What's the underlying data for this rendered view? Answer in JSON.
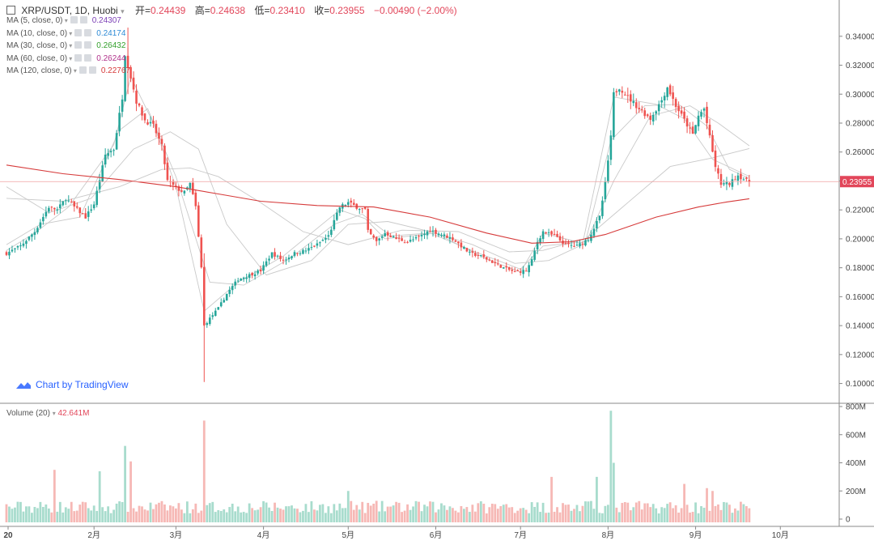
{
  "header": {
    "symbol": "XRP/USDT, 1D, Huobi",
    "open_label": "开=",
    "open": "0.24439",
    "high_label": "高=",
    "high": "0.24638",
    "low_label": "低=",
    "low": "0.23410",
    "close_label": "收=",
    "close": "0.23955",
    "change": "−0.00490 (−2.00%)"
  },
  "ma_legend": [
    {
      "label": "MA (5, close, 0)",
      "value": "0.24307",
      "color": "#7b3fb6"
    },
    {
      "label": "MA (10, close, 0)",
      "value": "0.24174",
      "color": "#2e8bd6"
    },
    {
      "label": "MA (30, close, 0)",
      "value": "0.26432",
      "color": "#33a02c"
    },
    {
      "label": "MA (60, close, 0)",
      "value": "0.26244",
      "color": "#b0308a"
    },
    {
      "label": "MA (120, close, 0)",
      "value": "0.22767",
      "color": "#d63a3a"
    }
  ],
  "volume_legend": {
    "label": "Volume (20)",
    "value": "42.641M",
    "color": "#e2465a"
  },
  "watermark": "Chart by TradingView",
  "last_price_label": "0.23955",
  "colors": {
    "up": "#26a69a",
    "down": "#ef5350",
    "up_vol": "#a8dccd",
    "down_vol": "#f6b8b5",
    "ma120": "#d63a3a",
    "ma_thin": "#c9c9c9",
    "grid": "#e6e6e6"
  },
  "chart_data": {
    "type": "candlestick",
    "price_axis": {
      "ticks": [
        "0.34000",
        "0.32000",
        "0.30000",
        "0.28000",
        "0.26000",
        "0.24000",
        "0.22000",
        "0.20000",
        "0.18000",
        "0.16000",
        "0.14000",
        "0.12000",
        "0.10000"
      ],
      "range": [
        0.088,
        0.355
      ]
    },
    "volume_axis": {
      "ticks": [
        "800M",
        "600M",
        "400M",
        "200M",
        "0"
      ],
      "range": [
        0,
        800
      ]
    },
    "time_axis": {
      "labels": [
        "20",
        "2月",
        "3月",
        "4月",
        "5月",
        "6月",
        "7月",
        "8月",
        "9月",
        "10月"
      ],
      "day_index": [
        0,
        31,
        60,
        91,
        121,
        152,
        182,
        213,
        244,
        274
      ]
    },
    "close_path": [
      [
        0,
        0.19
      ],
      [
        5,
        0.195
      ],
      [
        10,
        0.205
      ],
      [
        15,
        0.222
      ],
      [
        18,
        0.22
      ],
      [
        21,
        0.228
      ],
      [
        24,
        0.222
      ],
      [
        28,
        0.215
      ],
      [
        31,
        0.224
      ],
      [
        35,
        0.258
      ],
      [
        38,
        0.262
      ],
      [
        41,
        0.298
      ],
      [
        42,
        0.328
      ],
      [
        44,
        0.312
      ],
      [
        46,
        0.295
      ],
      [
        49,
        0.282
      ],
      [
        52,
        0.278
      ],
      [
        55,
        0.264
      ],
      [
        57,
        0.24
      ],
      [
        60,
        0.235
      ],
      [
        63,
        0.232
      ],
      [
        65,
        0.238
      ],
      [
        67,
        0.222
      ],
      [
        69,
        0.18
      ],
      [
        70,
        0.14
      ],
      [
        72,
        0.145
      ],
      [
        75,
        0.152
      ],
      [
        78,
        0.162
      ],
      [
        82,
        0.172
      ],
      [
        86,
        0.175
      ],
      [
        90,
        0.178
      ],
      [
        94,
        0.19
      ],
      [
        98,
        0.185
      ],
      [
        102,
        0.19
      ],
      [
        106,
        0.192
      ],
      [
        110,
        0.196
      ],
      [
        114,
        0.202
      ],
      [
        118,
        0.222
      ],
      [
        121,
        0.225
      ],
      [
        124,
        0.222
      ],
      [
        127,
        0.22
      ],
      [
        128,
        0.205
      ],
      [
        131,
        0.198
      ],
      [
        134,
        0.204
      ],
      [
        138,
        0.2
      ],
      [
        142,
        0.198
      ],
      [
        146,
        0.201
      ],
      [
        150,
        0.206
      ],
      [
        154,
        0.203
      ],
      [
        158,
        0.2
      ],
      [
        161,
        0.195
      ],
      [
        164,
        0.19
      ],
      [
        168,
        0.188
      ],
      [
        172,
        0.184
      ],
      [
        176,
        0.18
      ],
      [
        180,
        0.177
      ],
      [
        184,
        0.178
      ],
      [
        186,
        0.185
      ],
      [
        188,
        0.198
      ],
      [
        190,
        0.205
      ],
      [
        194,
        0.202
      ],
      [
        198,
        0.196
      ],
      [
        202,
        0.195
      ],
      [
        206,
        0.2
      ],
      [
        210,
        0.215
      ],
      [
        212,
        0.238
      ],
      [
        214,
        0.27
      ],
      [
        215,
        0.3
      ],
      [
        217,
        0.305
      ],
      [
        220,
        0.298
      ],
      [
        224,
        0.29
      ],
      [
        228,
        0.283
      ],
      [
        232,
        0.296
      ],
      [
        234,
        0.305
      ],
      [
        237,
        0.292
      ],
      [
        240,
        0.282
      ],
      [
        243,
        0.272
      ],
      [
        245,
        0.285
      ],
      [
        247,
        0.29
      ],
      [
        249,
        0.27
      ],
      [
        251,
        0.25
      ],
      [
        253,
        0.238
      ],
      [
        256,
        0.238
      ],
      [
        259,
        0.244
      ],
      [
        262,
        0.24
      ],
      [
        263,
        0.2396
      ]
    ],
    "ma_curves": {
      "ma120": [
        [
          0,
          0.251
        ],
        [
          20,
          0.245
        ],
        [
          40,
          0.241
        ],
        [
          60,
          0.236
        ],
        [
          75,
          0.231
        ],
        [
          90,
          0.226
        ],
        [
          110,
          0.223
        ],
        [
          130,
          0.222
        ],
        [
          150,
          0.215
        ],
        [
          170,
          0.204
        ],
        [
          186,
          0.197
        ],
        [
          200,
          0.198
        ],
        [
          212,
          0.203
        ],
        [
          230,
          0.215
        ],
        [
          245,
          0.222
        ],
        [
          255,
          0.2255
        ],
        [
          263,
          0.2277
        ]
      ],
      "ma60": [
        [
          0,
          0.228
        ],
        [
          20,
          0.226
        ],
        [
          40,
          0.236
        ],
        [
          55,
          0.248
        ],
        [
          65,
          0.249
        ],
        [
          75,
          0.243
        ],
        [
          90,
          0.225
        ],
        [
          105,
          0.205
        ],
        [
          121,
          0.196
        ],
        [
          140,
          0.206
        ],
        [
          160,
          0.205
        ],
        [
          178,
          0.191
        ],
        [
          190,
          0.192
        ],
        [
          205,
          0.2
        ],
        [
          220,
          0.225
        ],
        [
          235,
          0.25
        ],
        [
          250,
          0.256
        ],
        [
          263,
          0.2624
        ]
      ],
      "ma30": [
        [
          0,
          0.236
        ],
        [
          15,
          0.218
        ],
        [
          30,
          0.228
        ],
        [
          45,
          0.262
        ],
        [
          58,
          0.274
        ],
        [
          68,
          0.262
        ],
        [
          78,
          0.21
        ],
        [
          92,
          0.175
        ],
        [
          108,
          0.185
        ],
        [
          121,
          0.21
        ],
        [
          135,
          0.212
        ],
        [
          150,
          0.205
        ],
        [
          165,
          0.196
        ],
        [
          180,
          0.183
        ],
        [
          192,
          0.185
        ],
        [
          205,
          0.197
        ],
        [
          215,
          0.24
        ],
        [
          228,
          0.285
        ],
        [
          242,
          0.292
        ],
        [
          252,
          0.28
        ],
        [
          263,
          0.2643
        ]
      ],
      "ma10": [
        [
          0,
          0.196
        ],
        [
          12,
          0.21
        ],
        [
          26,
          0.215
        ],
        [
          40,
          0.275
        ],
        [
          50,
          0.29
        ],
        [
          60,
          0.243
        ],
        [
          72,
          0.17
        ],
        [
          84,
          0.168
        ],
        [
          100,
          0.186
        ],
        [
          116,
          0.21
        ],
        [
          126,
          0.217
        ],
        [
          136,
          0.202
        ],
        [
          150,
          0.204
        ],
        [
          166,
          0.191
        ],
        [
          182,
          0.179
        ],
        [
          190,
          0.195
        ],
        [
          205,
          0.198
        ],
        [
          214,
          0.268
        ],
        [
          226,
          0.292
        ],
        [
          238,
          0.293
        ],
        [
          248,
          0.278
        ],
        [
          256,
          0.248
        ],
        [
          263,
          0.2417
        ]
      ],
      "ma5": [
        [
          0,
          0.192
        ],
        [
          10,
          0.204
        ],
        [
          22,
          0.222
        ],
        [
          38,
          0.265
        ],
        [
          44,
          0.312
        ],
        [
          52,
          0.28
        ],
        [
          60,
          0.236
        ],
        [
          70,
          0.15
        ],
        [
          82,
          0.17
        ],
        [
          98,
          0.188
        ],
        [
          118,
          0.22
        ],
        [
          127,
          0.214
        ],
        [
          134,
          0.2
        ],
        [
          152,
          0.204
        ],
        [
          170,
          0.186
        ],
        [
          182,
          0.177
        ],
        [
          190,
          0.204
        ],
        [
          204,
          0.197
        ],
        [
          215,
          0.298
        ],
        [
          230,
          0.293
        ],
        [
          240,
          0.283
        ],
        [
          250,
          0.255
        ],
        [
          263,
          0.2431
        ]
      ]
    },
    "volume_spikes_M": [
      [
        70,
        700
      ],
      [
        42,
        520
      ],
      [
        44,
        410
      ],
      [
        214,
        770
      ],
      [
        215,
        400
      ],
      [
        33,
        340
      ],
      [
        17,
        350
      ],
      [
        193,
        300
      ],
      [
        209,
        300
      ],
      [
        121,
        200
      ],
      [
        240,
        250
      ],
      [
        248,
        220
      ],
      [
        250,
        200
      ]
    ]
  }
}
